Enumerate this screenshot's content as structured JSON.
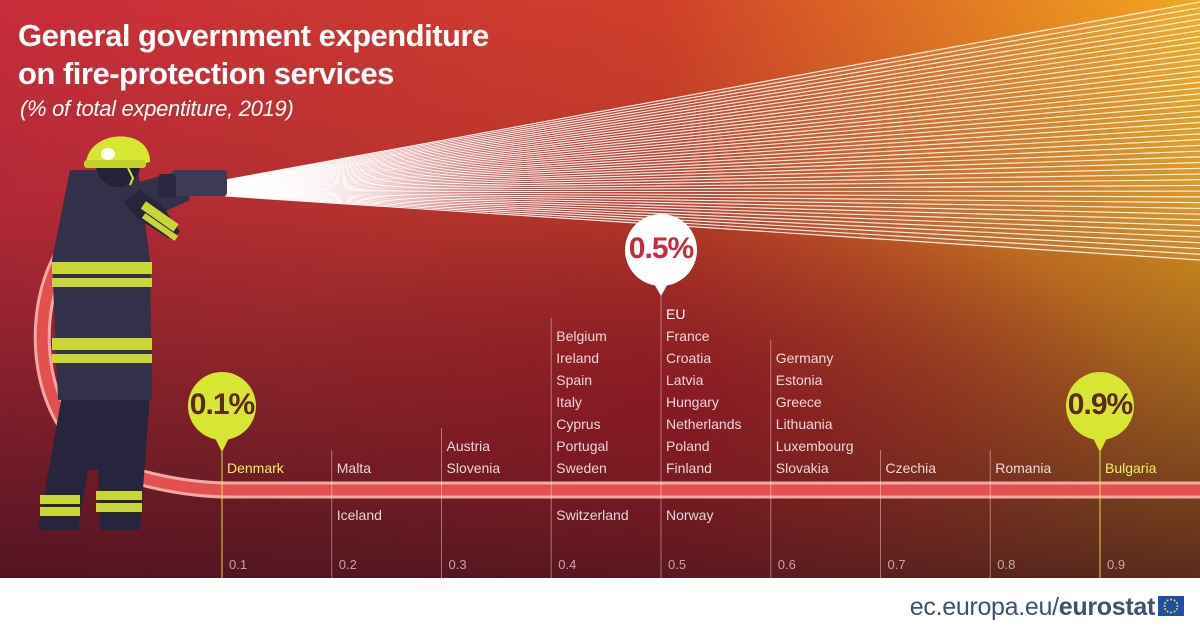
{
  "title_lines": [
    "General government expenditure",
    "on fire-protection services"
  ],
  "subtitle": "(% of total expentiture, 2019)",
  "source": {
    "site": "ec.europa.eu/",
    "brand": "eurostat"
  },
  "colors": {
    "bg_left": "#c72d3b",
    "bg_right": "#f2a81e",
    "bg_dark": "#52182a",
    "hose": "#e2504f",
    "bubble_yellow": "#d7e633",
    "label_highlight": "#f0f060",
    "footer_bg": "#ffffff",
    "footer_text": "#3d5270"
  },
  "chart_data": {
    "type": "dot-strip",
    "title": "General government expenditure on fire-protection services",
    "subtitle": "% of total expenditure, 2019",
    "axis": {
      "min": 0.1,
      "max": 0.9,
      "step": 0.1
    },
    "ticks": [
      "0.1",
      "0.2",
      "0.3",
      "0.4",
      "0.5",
      "0.6",
      "0.7",
      "0.8",
      "0.9"
    ],
    "bins": [
      {
        "value": 0.1,
        "above": [
          "Denmark"
        ],
        "below": []
      },
      {
        "value": 0.2,
        "above": [
          "Malta"
        ],
        "below": [
          "Iceland"
        ]
      },
      {
        "value": 0.3,
        "above": [
          "Austria",
          "Slovenia"
        ],
        "below": []
      },
      {
        "value": 0.4,
        "above": [
          "Belgium",
          "Ireland",
          "Spain",
          "Italy",
          "Cyprus",
          "Portugal",
          "Sweden"
        ],
        "below": [
          "Switzerland"
        ]
      },
      {
        "value": 0.5,
        "above": [
          "EU",
          "France",
          "Croatia",
          "Latvia",
          "Hungary",
          "Netherlands",
          "Poland",
          "Finland"
        ],
        "below": [
          "Norway"
        ]
      },
      {
        "value": 0.6,
        "above": [
          "Germany",
          "Estonia",
          "Greece",
          "Lithuania",
          "Luxembourg",
          "Slovakia"
        ],
        "below": []
      },
      {
        "value": 0.7,
        "above": [
          "Czechia"
        ],
        "below": []
      },
      {
        "value": 0.8,
        "above": [
          "Romania"
        ],
        "below": []
      },
      {
        "value": 0.9,
        "above": [
          "Bulgaria"
        ],
        "below": []
      }
    ],
    "highlights": [
      {
        "label": "0.1%",
        "value": 0.1,
        "style": "yellow"
      },
      {
        "label": "0.5%",
        "value": 0.5,
        "style": "white"
      },
      {
        "label": "0.9%",
        "value": 0.9,
        "style": "yellow"
      }
    ],
    "highlight_countries": [
      "Denmark",
      "Bulgaria"
    ]
  }
}
